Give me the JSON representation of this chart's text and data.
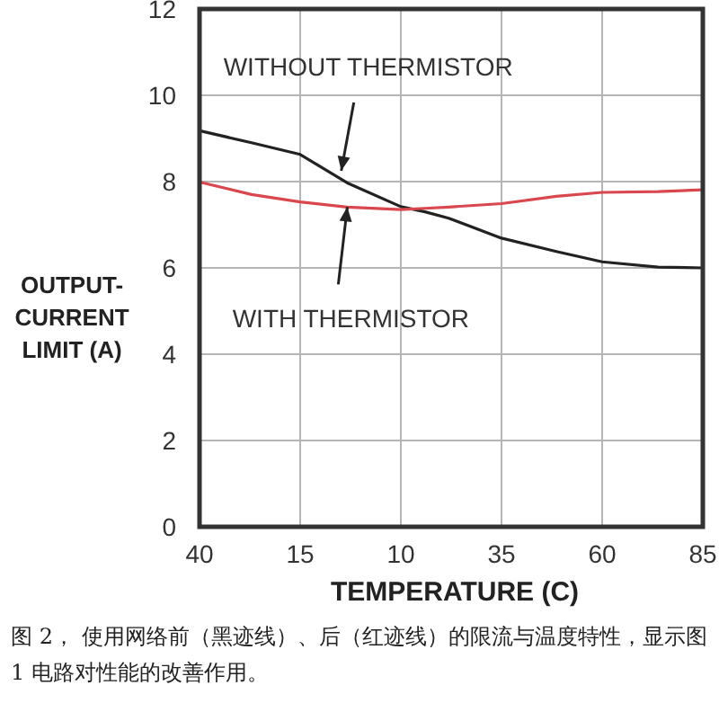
{
  "chart_data": {
    "type": "line",
    "xlabel": "TEMPERATURE (C)",
    "ylabel": "OUTPUT-\nCURRENT\nLIMIT (A)",
    "x": [
      -40,
      -27.1,
      -15,
      -3.3,
      10,
      16,
      21.9,
      35,
      48.6,
      60,
      73.9,
      85
    ],
    "series": [
      {
        "color": "#222222",
        "values": [
          9.18,
          8.9,
          8.63,
          7.97,
          7.42,
          7.3,
          7.15,
          6.69,
          6.38,
          6.14,
          6.02,
          6.0
        ]
      },
      {
        "color": "#d9474f",
        "values": [
          7.99,
          7.7,
          7.53,
          7.41,
          7.35,
          7.38,
          7.41,
          7.49,
          7.66,
          7.75,
          7.77,
          7.81
        ]
      }
    ],
    "xlim": [
      -40,
      85
    ],
    "xticks": [
      {
        "value": -40,
        "label": "40"
      },
      {
        "value": -15,
        "label": "15"
      },
      10,
      35,
      60,
      85
    ],
    "ylim": [
      0,
      12
    ],
    "yticks": [
      0,
      2,
      4,
      6,
      8,
      10,
      12
    ],
    "grid": true,
    "marker": "none",
    "line_style": "solid",
    "annotations": [
      {
        "text": "WITHOUT THERMISTOR",
        "x": -4.8,
        "y": 8.25
      },
      {
        "text": "WITH THERMISTOR",
        "x": -3.3,
        "y": 7.41
      },
      "图 2， 使用网络前（黑迹线）、后（红迹线）的限流与温度特性，显示图 1 电路对性能的改善作用。"
    ]
  }
}
